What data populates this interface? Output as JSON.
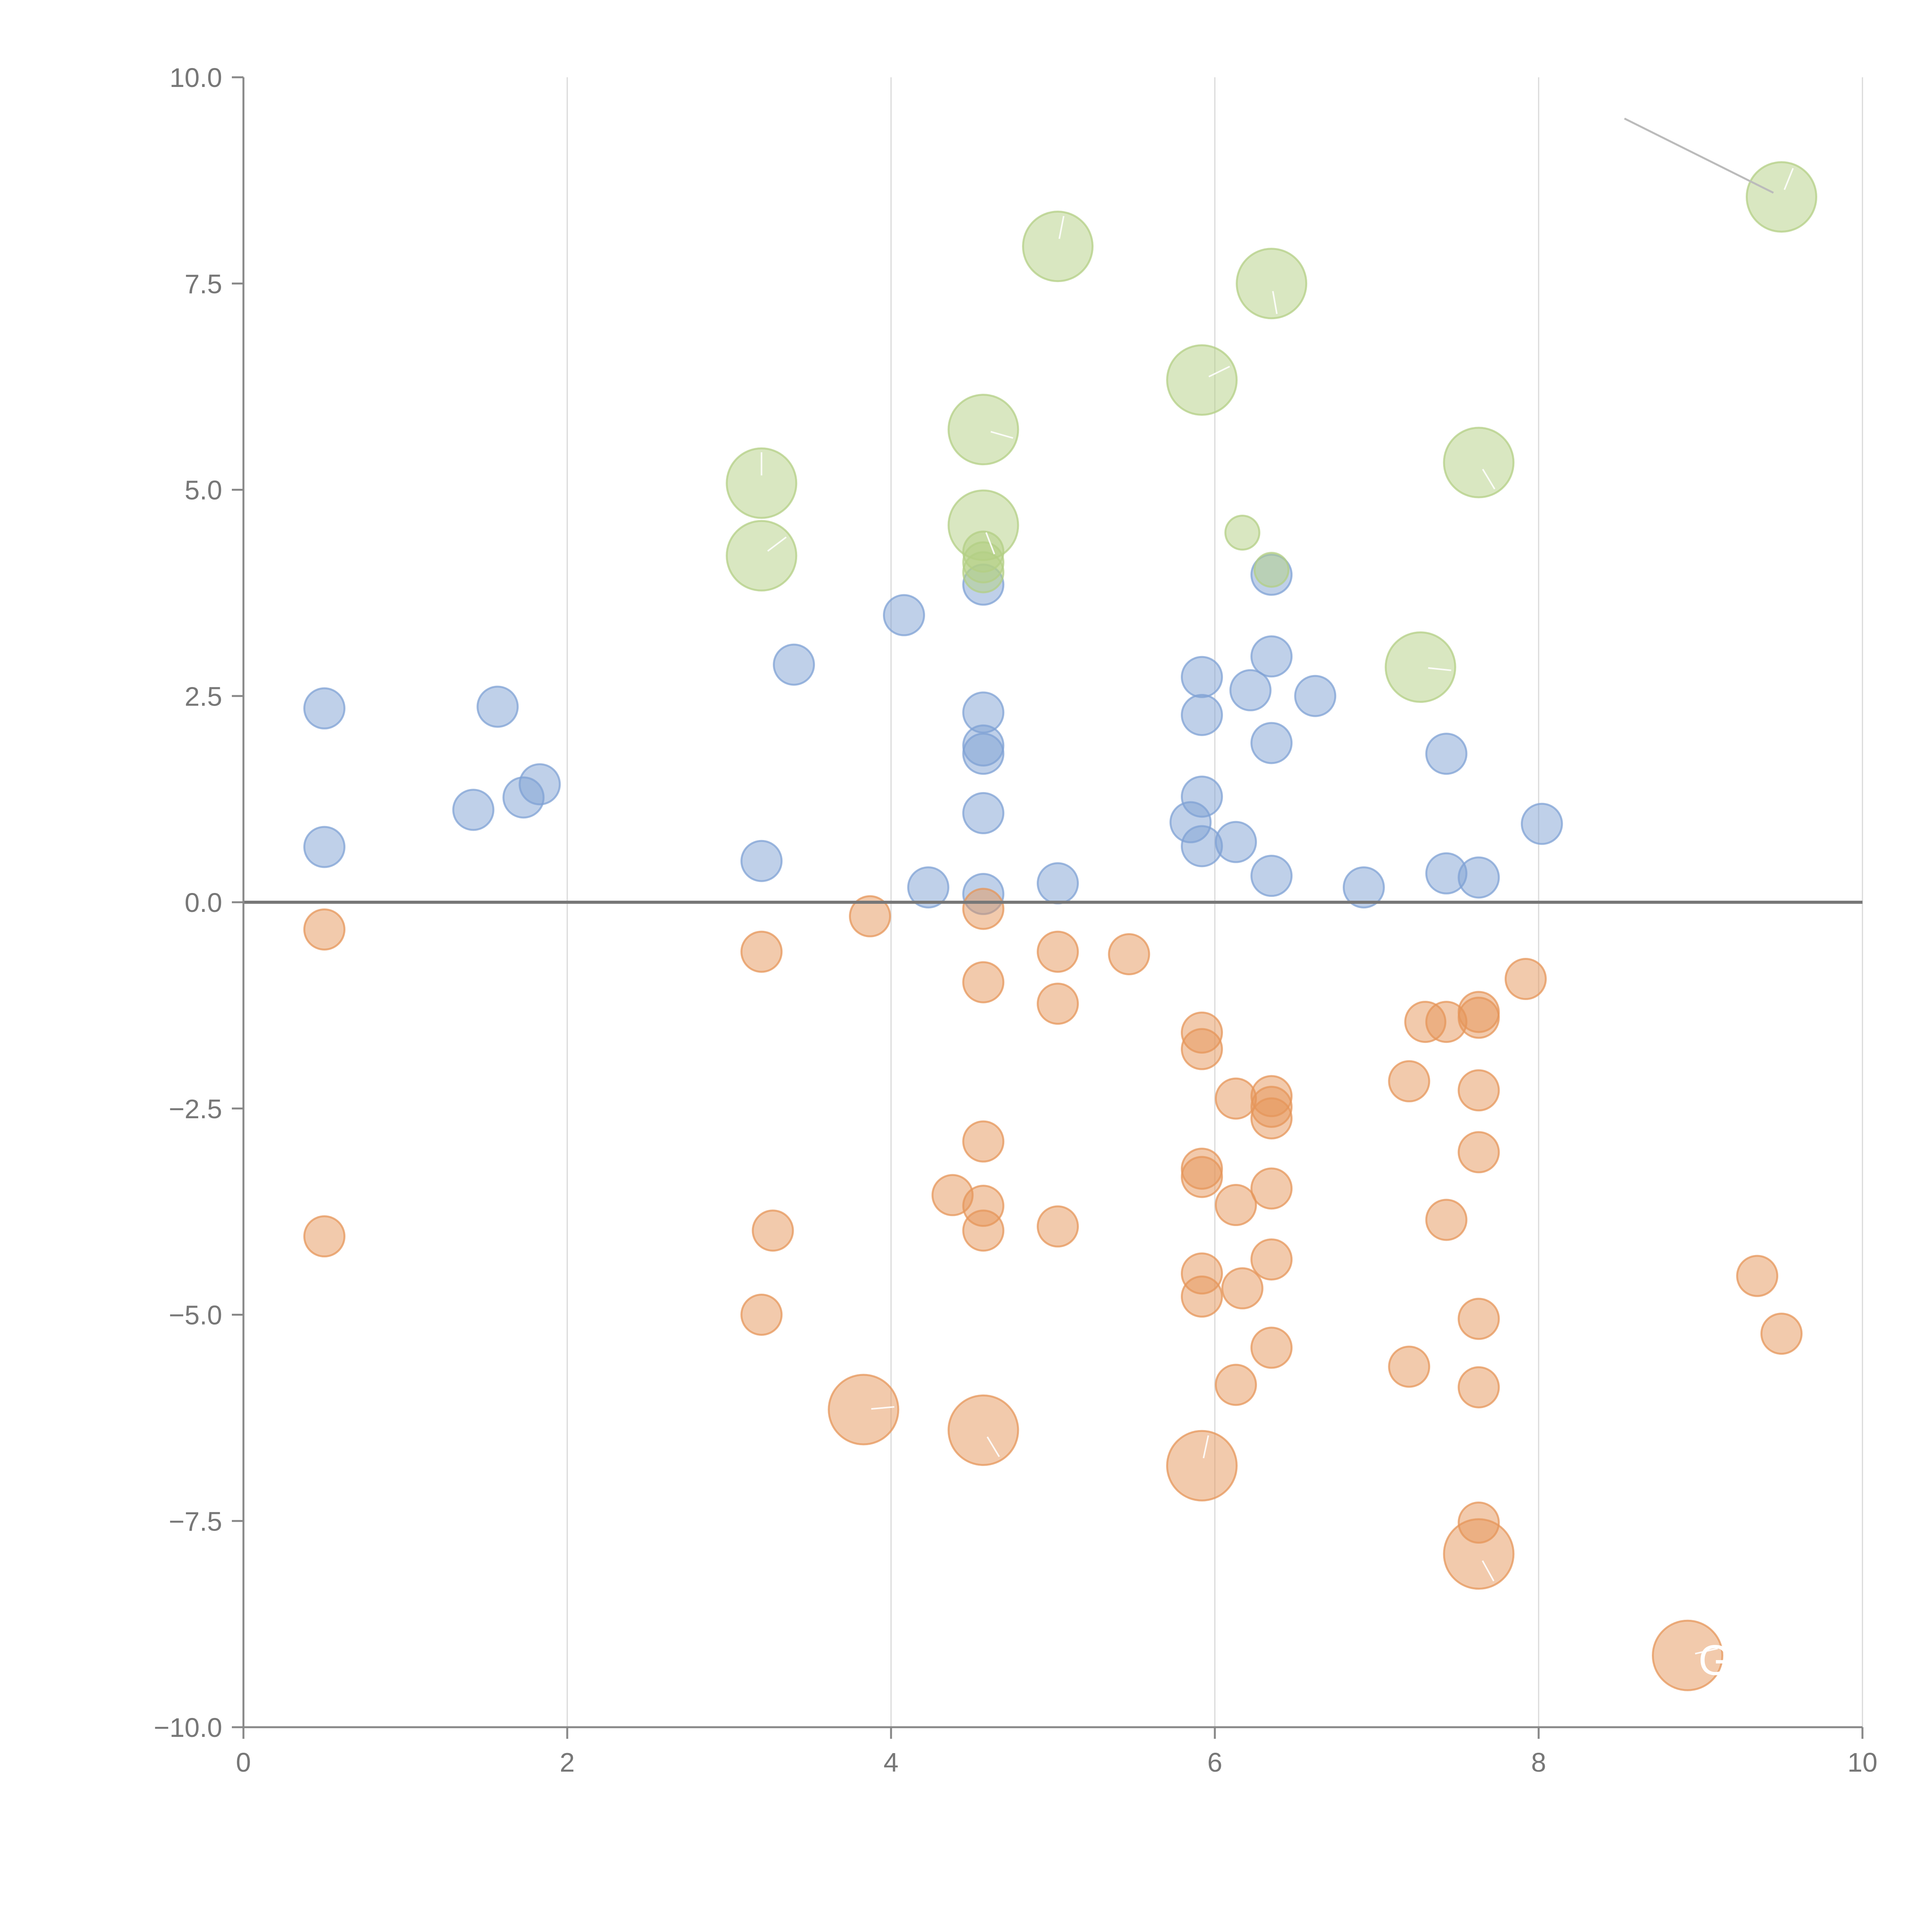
{
  "chart_data": {
    "type": "scatter",
    "variant": "bubble",
    "title": "",
    "xlabel": "",
    "ylabel": "",
    "xlim": [
      0,
      10
    ],
    "ylim": [
      -10,
      10
    ],
    "x_ticks": [
      0,
      2,
      4,
      6,
      8,
      10
    ],
    "x_tick_labels": [
      "0",
      "2",
      "4",
      "6",
      "8",
      "10"
    ],
    "y_ticks": [
      10,
      7.5,
      5,
      2.5,
      0,
      -2.5,
      -5,
      -7.5,
      -10
    ],
    "y_tick_labels": [
      "10.0",
      "7.5",
      "5.0",
      "2.5",
      "0.0",
      "−2.5",
      "−5.0",
      "−7.5",
      "−10.0"
    ],
    "grid": {
      "vertical": true,
      "horizontal": false
    },
    "reference_line": {
      "y": 0
    },
    "colors": {
      "blue": "#7fa2d4",
      "green": "#b3cf84",
      "orange": "#e6955a"
    },
    "annotation_text": "G",
    "series": [
      {
        "name": "blue",
        "color": "#7fa2d4",
        "points": [
          [
            0.5,
            2.35,
            1
          ],
          [
            0.5,
            0.67,
            1
          ],
          [
            1.42,
            1.12,
            1
          ],
          [
            1.57,
            2.37,
            1
          ],
          [
            1.73,
            1.27,
            1
          ],
          [
            1.83,
            1.43,
            1
          ],
          [
            3.2,
            0.5,
            1
          ],
          [
            3.4,
            2.88,
            1
          ],
          [
            4.08,
            3.48,
            1
          ],
          [
            4.23,
            0.18,
            1
          ],
          [
            4.57,
            3.85,
            1
          ],
          [
            4.57,
            2.3,
            1
          ],
          [
            4.57,
            1.9,
            1
          ],
          [
            4.57,
            1.8,
            1
          ],
          [
            4.57,
            1.08,
            1
          ],
          [
            4.57,
            0.1,
            1
          ],
          [
            5.03,
            0.23,
            1
          ],
          [
            5.85,
            0.97,
            1
          ],
          [
            5.92,
            2.73,
            1
          ],
          [
            5.92,
            2.27,
            1
          ],
          [
            5.92,
            1.28,
            1
          ],
          [
            5.92,
            0.68,
            1
          ],
          [
            6.13,
            0.73,
            1
          ],
          [
            6.22,
            2.57,
            1
          ],
          [
            6.35,
            3.97,
            1
          ],
          [
            6.35,
            2.98,
            1
          ],
          [
            6.35,
            1.93,
            1
          ],
          [
            6.35,
            0.32,
            1
          ],
          [
            6.62,
            2.5,
            1
          ],
          [
            6.92,
            0.18,
            1
          ],
          [
            7.43,
            1.8,
            1
          ],
          [
            7.43,
            0.35,
            1
          ],
          [
            7.63,
            0.3,
            1
          ],
          [
            8.02,
            0.95,
            1
          ]
        ]
      },
      {
        "name": "green",
        "color": "#b3cf84",
        "points": [
          [
            3.2,
            5.08,
            2
          ],
          [
            3.2,
            4.2,
            2
          ],
          [
            4.57,
            5.73,
            2
          ],
          [
            4.57,
            4.57,
            2
          ],
          [
            4.57,
            4.25,
            1
          ],
          [
            4.57,
            4.12,
            1
          ],
          [
            4.57,
            4.0,
            1
          ],
          [
            5.03,
            7.95,
            2
          ],
          [
            5.92,
            6.33,
            2
          ],
          [
            6.17,
            4.48,
            0.8
          ],
          [
            6.35,
            7.5,
            2
          ],
          [
            6.35,
            4.03,
            0.8
          ],
          [
            7.27,
            2.85,
            2
          ],
          [
            7.63,
            5.33,
            2
          ],
          [
            9.5,
            8.55,
            2
          ]
        ]
      },
      {
        "name": "orange",
        "color": "#e6955a",
        "points": [
          [
            0.5,
            -0.33,
            1
          ],
          [
            0.5,
            -4.05,
            1
          ],
          [
            3.2,
            -0.6,
            1
          ],
          [
            3.2,
            -5.0,
            1
          ],
          [
            3.27,
            -3.98,
            1
          ],
          [
            3.83,
            -6.15,
            2
          ],
          [
            3.87,
            -0.17,
            1
          ],
          [
            4.38,
            -3.55,
            1
          ],
          [
            4.57,
            -0.08,
            1
          ],
          [
            4.57,
            -0.97,
            1
          ],
          [
            4.57,
            -2.9,
            1
          ],
          [
            4.57,
            -3.68,
            1
          ],
          [
            4.57,
            -3.98,
            1
          ],
          [
            4.57,
            -6.4,
            2
          ],
          [
            5.03,
            -0.6,
            1
          ],
          [
            5.03,
            -1.23,
            1
          ],
          [
            5.03,
            -3.93,
            1
          ],
          [
            5.47,
            -0.63,
            1
          ],
          [
            5.92,
            -1.58,
            1
          ],
          [
            5.92,
            -1.78,
            1
          ],
          [
            5.92,
            -3.23,
            1
          ],
          [
            5.92,
            -3.33,
            1
          ],
          [
            5.92,
            -4.5,
            1
          ],
          [
            5.92,
            -4.78,
            1
          ],
          [
            5.92,
            -6.83,
            2
          ],
          [
            6.13,
            -2.38,
            1
          ],
          [
            6.13,
            -3.67,
            1
          ],
          [
            6.13,
            -5.85,
            1
          ],
          [
            6.17,
            -4.68,
            1
          ],
          [
            6.35,
            -2.35,
            1
          ],
          [
            6.35,
            -2.48,
            1
          ],
          [
            6.35,
            -2.62,
            1
          ],
          [
            6.35,
            -3.47,
            1
          ],
          [
            6.35,
            -4.33,
            1
          ],
          [
            6.35,
            -5.4,
            1
          ],
          [
            7.2,
            -2.17,
            1
          ],
          [
            7.2,
            -5.63,
            1
          ],
          [
            7.3,
            -1.45,
            1
          ],
          [
            7.43,
            -1.45,
            1
          ],
          [
            7.43,
            -3.85,
            1
          ],
          [
            7.63,
            -1.33,
            1
          ],
          [
            7.63,
            -1.4,
            1
          ],
          [
            7.63,
            -2.28,
            1
          ],
          [
            7.63,
            -3.03,
            1
          ],
          [
            7.63,
            -5.05,
            1
          ],
          [
            7.63,
            -5.88,
            1
          ],
          [
            7.63,
            -7.52,
            1
          ],
          [
            7.63,
            -7.9,
            2
          ],
          [
            7.92,
            -0.93,
            1
          ],
          [
            8.92,
            -9.13,
            2
          ],
          [
            9.35,
            -4.53,
            1
          ],
          [
            9.5,
            -5.23,
            1
          ]
        ]
      }
    ]
  }
}
